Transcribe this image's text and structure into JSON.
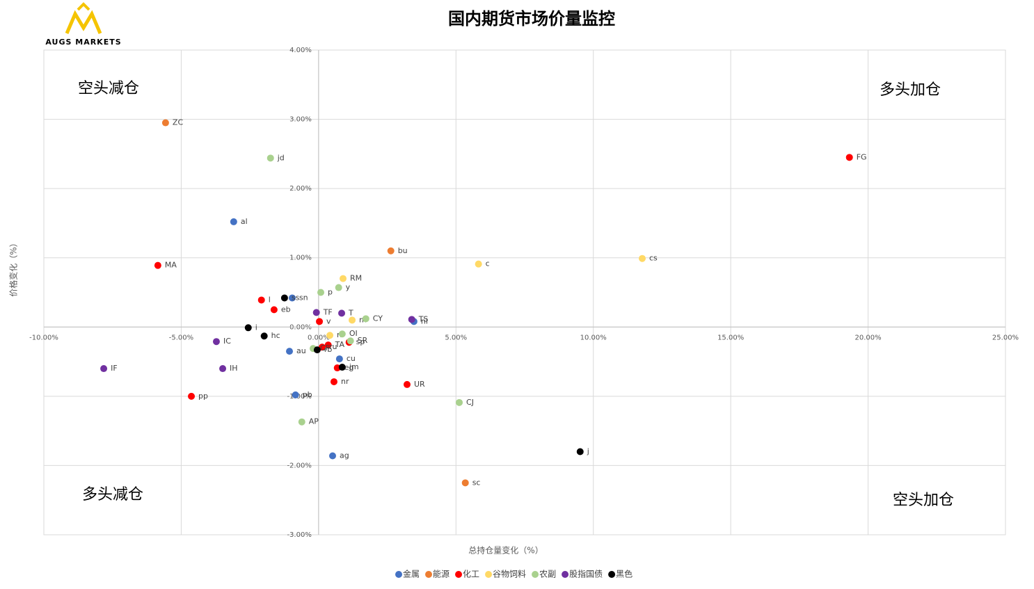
{
  "logo": "AUGS MARKETS",
  "chart_data": {
    "type": "scatter",
    "title": "国内期货市场价量监控",
    "xlabel": "总持仓量变化（%）",
    "ylabel": "价格变化（%）",
    "annotations": [
      "空头减仓",
      "多头加仓",
      "多头减仓",
      "空头加仓"
    ],
    "xlim": [
      -10,
      25
    ],
    "ylim": [
      -3,
      4
    ],
    "xticks": [
      {
        "value": -10,
        "label": "-10.00%"
      },
      {
        "value": -5,
        "label": "-5.00%"
      },
      {
        "value": 0,
        "label": "0.00%"
      },
      {
        "value": 5,
        "label": "5.00%"
      },
      {
        "value": 10,
        "label": "10.00%"
      },
      {
        "value": 15,
        "label": "15.00%"
      },
      {
        "value": 20,
        "label": "20.00%"
      },
      {
        "value": 25,
        "label": "25.00%"
      }
    ],
    "yticks": [
      {
        "value": -3,
        "label": "-3.00%"
      },
      {
        "value": -2,
        "label": "-2.00%"
      },
      {
        "value": -1,
        "label": "-1.00%"
      },
      {
        "value": 0,
        "label": "0.00%"
      },
      {
        "value": 1,
        "label": "1.00%"
      },
      {
        "value": 2,
        "label": "2.00%"
      },
      {
        "value": 3,
        "label": "3.00%"
      },
      {
        "value": 4,
        "label": "4.00%"
      }
    ],
    "grid": true,
    "series": [
      {
        "name": "金属",
        "color": "#4472c4",
        "labels": [
          "al",
          "sn",
          "au",
          "pb",
          "ni",
          "ag",
          "cu"
        ],
        "x": [
          -3.09,
          -0.96,
          -1.06,
          -0.84,
          3.47,
          0.51,
          0.76
        ],
        "values": [
          1.52,
          0.42,
          -0.35,
          -0.98,
          0.08,
          -1.86,
          -0.46
        ]
      },
      {
        "name": "能源",
        "color": "#ed7d31",
        "labels": [
          "ZC",
          "bu",
          "sc"
        ],
        "x": [
          -5.57,
          2.63,
          5.34
        ],
        "values": [
          2.95,
          1.1,
          -2.25
        ]
      },
      {
        "name": "化工",
        "color": "#ff0000",
        "labels": [
          "FG",
          "MA",
          "l",
          "eb",
          "v",
          "pp",
          "UR",
          "nr",
          "sp",
          "TA",
          "ru",
          "eg"
        ],
        "x": [
          19.32,
          -5.85,
          -2.08,
          -1.62,
          0.03,
          -4.63,
          3.22,
          0.56,
          1.11,
          0.35,
          0.13,
          0.68
        ],
        "values": [
          2.45,
          0.89,
          0.39,
          0.25,
          0.08,
          -1.0,
          -0.83,
          -0.79,
          -0.22,
          -0.26,
          -0.29,
          -0.59
        ]
      },
      {
        "name": "谷物饲料",
        "color": "#ffd966",
        "labels": [
          "cs",
          "c",
          "RM",
          "m",
          "rr"
        ],
        "x": [
          11.78,
          5.82,
          0.89,
          1.22,
          0.41
        ],
        "values": [
          0.99,
          0.91,
          0.7,
          0.1,
          -0.12
        ]
      },
      {
        "name": "农副",
        "color": "#a9d18e",
        "labels": [
          "jd",
          "y",
          "p",
          "CY",
          "OI",
          "SR",
          "CF",
          "CJ",
          "AP"
        ],
        "x": [
          -1.75,
          0.73,
          0.08,
          1.72,
          0.86,
          1.16,
          -0.2,
          5.12,
          -0.61
        ],
        "values": [
          2.44,
          0.57,
          0.5,
          0.12,
          -0.1,
          -0.2,
          -0.31,
          -1.09,
          -1.37
        ]
      },
      {
        "name": "股指国债",
        "color": "#7030a0",
        "labels": [
          "IF",
          "IC",
          "IH",
          "TF",
          "T",
          "TS"
        ],
        "x": [
          -7.82,
          -3.72,
          -3.49,
          -0.08,
          0.84,
          3.39
        ],
        "values": [
          -0.6,
          -0.21,
          -0.6,
          0.21,
          0.2,
          0.11
        ]
      },
      {
        "name": "黑色",
        "color": "#000000",
        "labels": [
          "j",
          "i",
          "hc",
          "ss",
          "rb",
          "jm"
        ],
        "x": [
          9.52,
          -2.56,
          -1.98,
          -1.24,
          -0.05,
          0.86
        ],
        "values": [
          -1.8,
          -0.01,
          -0.13,
          0.42,
          -0.33,
          -0.58
        ]
      }
    ]
  }
}
